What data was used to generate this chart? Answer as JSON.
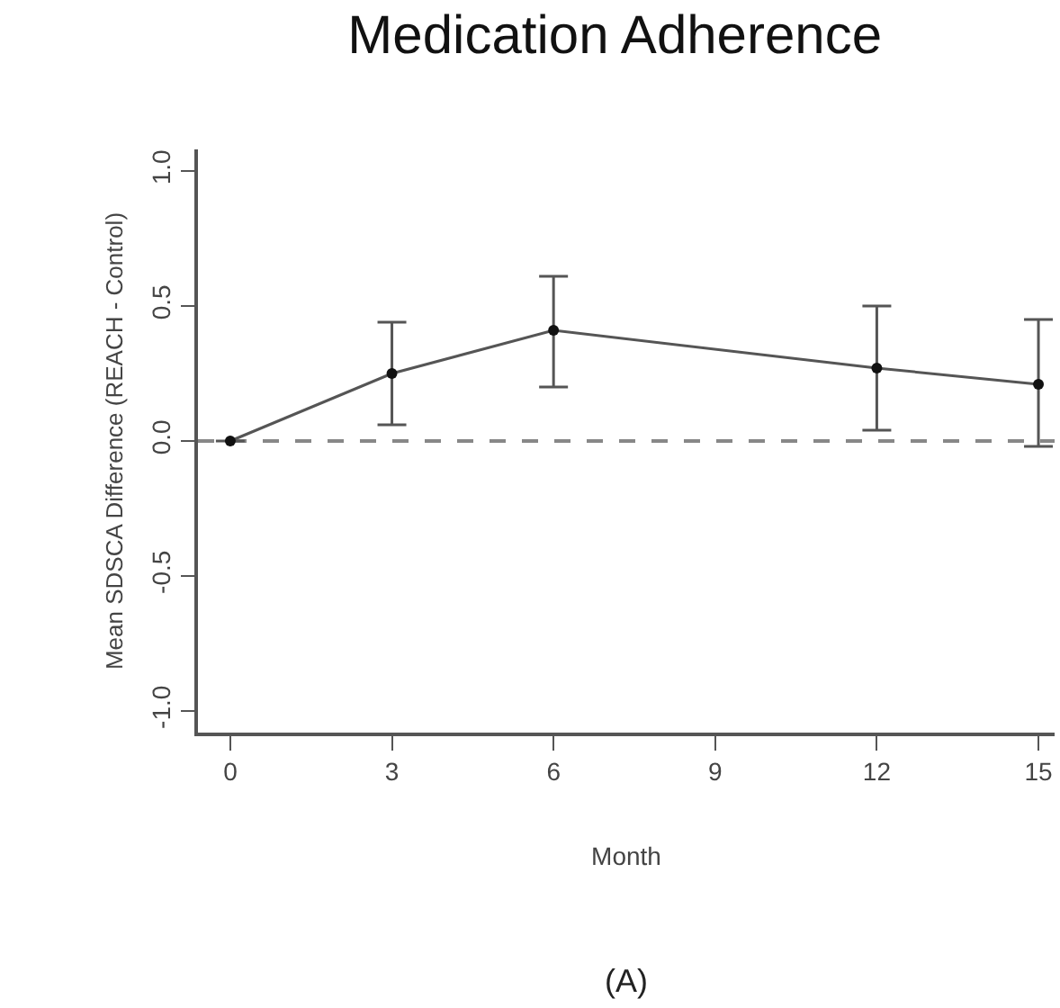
{
  "chart_data": {
    "type": "line",
    "title": "Medication Adherence",
    "xlabel": "Month",
    "ylabel": "Mean SDSCA Difference (REACH - Control)",
    "annotations": [
      "(A)"
    ],
    "x": [
      0,
      3,
      6,
      12,
      15
    ],
    "series": [
      {
        "color": "#555555",
        "values": [
          0,
          0.25,
          0.41,
          0.27,
          0.21
        ],
        "errors": [
          null,
          [
            0.06,
            0.44
          ],
          [
            0.2,
            0.61
          ],
          [
            0.04,
            0.5
          ],
          [
            -0.02,
            0.45
          ]
        ]
      }
    ],
    "xlim": [
      -0.6,
      15.3
    ],
    "ylim": [
      -1.08,
      1.08
    ],
    "xticks": [
      0,
      3,
      6,
      9,
      12,
      15
    ],
    "yticks": [
      {
        "value": -1,
        "label": "-1.0"
      },
      -0.5,
      {
        "value": 0,
        "label": "0.0"
      },
      0.5,
      {
        "value": 1,
        "label": "1.0"
      }
    ],
    "ref_lines": [
      {
        "axis": "y",
        "value": 0,
        "color": "#888888",
        "line_style": "dashed"
      }
    ],
    "marker": "circle",
    "line_style": "solid",
    "grid": false,
    "legend": false
  }
}
